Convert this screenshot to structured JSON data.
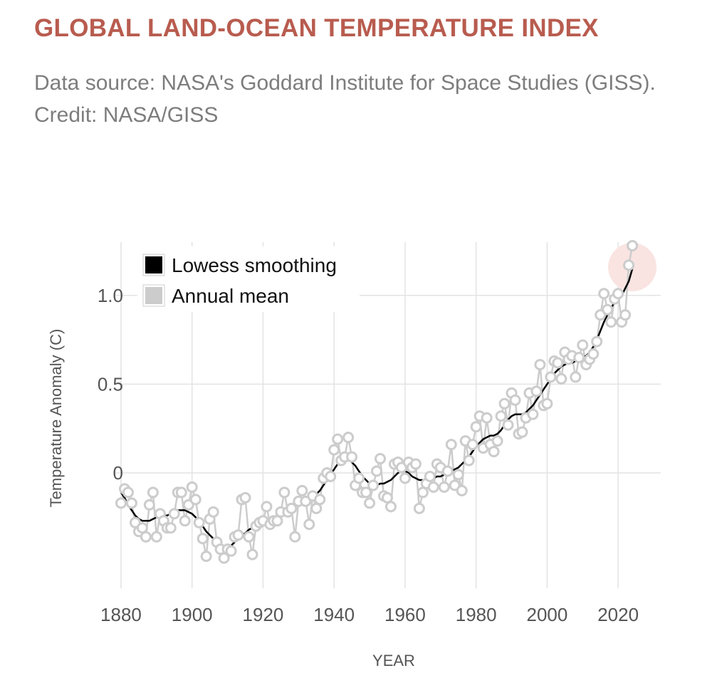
{
  "header": {
    "title": "GLOBAL LAND-OCEAN TEMPERATURE INDEX",
    "subtitle": "Data source: NASA's Goddard Institute for Space Studies (GISS). Credit: NASA/GISS"
  },
  "chart_data": {
    "type": "line",
    "title": "GLOBAL LAND-OCEAN TEMPERATURE INDEX",
    "xlabel": "YEAR",
    "ylabel": "Temperature Anomaly (C)",
    "xlim": [
      1878,
      2032
    ],
    "ylim": [
      -0.65,
      1.3
    ],
    "x_ticks": [
      1880,
      1900,
      1920,
      1940,
      1960,
      1980,
      2000,
      2020
    ],
    "x_tick_labels": [
      "1880",
      "1900",
      "1920",
      "1940",
      "1960",
      "1980",
      "2000",
      "2020"
    ],
    "y_ticks": [
      0,
      0.5,
      1.0
    ],
    "y_tick_labels": [
      "0",
      "0.5",
      "1.0"
    ],
    "grid": true,
    "legend": {
      "position": "top-left",
      "entries": [
        {
          "label": "Lowess smoothing",
          "color": "#000000"
        },
        {
          "label": "Annual mean",
          "color": "#cccccc"
        }
      ]
    },
    "highlight": {
      "year": 2024,
      "color": "#f9e4e1"
    },
    "series": [
      {
        "name": "Annual mean",
        "color": "#cccccc",
        "years": [
          1880,
          1881,
          1882,
          1883,
          1884,
          1885,
          1886,
          1887,
          1888,
          1889,
          1890,
          1891,
          1892,
          1893,
          1894,
          1895,
          1896,
          1897,
          1898,
          1899,
          1900,
          1901,
          1902,
          1903,
          1904,
          1905,
          1906,
          1907,
          1908,
          1909,
          1910,
          1911,
          1912,
          1913,
          1914,
          1915,
          1916,
          1917,
          1918,
          1919,
          1920,
          1921,
          1922,
          1923,
          1924,
          1925,
          1926,
          1927,
          1928,
          1929,
          1930,
          1931,
          1932,
          1933,
          1934,
          1935,
          1936,
          1937,
          1938,
          1939,
          1940,
          1941,
          1942,
          1943,
          1944,
          1945,
          1946,
          1947,
          1948,
          1949,
          1950,
          1951,
          1952,
          1953,
          1954,
          1955,
          1956,
          1957,
          1958,
          1959,
          1960,
          1961,
          1962,
          1963,
          1964,
          1965,
          1966,
          1967,
          1968,
          1969,
          1970,
          1971,
          1972,
          1973,
          1974,
          1975,
          1976,
          1977,
          1978,
          1979,
          1980,
          1981,
          1982,
          1983,
          1984,
          1985,
          1986,
          1987,
          1988,
          1989,
          1990,
          1991,
          1992,
          1993,
          1994,
          1995,
          1996,
          1997,
          1998,
          1999,
          2000,
          2001,
          2002,
          2003,
          2004,
          2005,
          2006,
          2007,
          2008,
          2009,
          2010,
          2011,
          2012,
          2013,
          2014,
          2015,
          2016,
          2017,
          2018,
          2019,
          2020,
          2021,
          2022,
          2023,
          2024
        ],
        "values": [
          -0.17,
          -0.09,
          -0.11,
          -0.17,
          -0.28,
          -0.33,
          -0.31,
          -0.36,
          -0.18,
          -0.11,
          -0.36,
          -0.23,
          -0.27,
          -0.31,
          -0.31,
          -0.23,
          -0.11,
          -0.11,
          -0.27,
          -0.18,
          -0.08,
          -0.15,
          -0.28,
          -0.37,
          -0.47,
          -0.26,
          -0.22,
          -0.39,
          -0.43,
          -0.48,
          -0.43,
          -0.44,
          -0.36,
          -0.35,
          -0.15,
          -0.14,
          -0.36,
          -0.46,
          -0.3,
          -0.28,
          -0.27,
          -0.19,
          -0.29,
          -0.27,
          -0.27,
          -0.22,
          -0.11,
          -0.22,
          -0.2,
          -0.36,
          -0.16,
          -0.1,
          -0.16,
          -0.29,
          -0.13,
          -0.2,
          -0.15,
          -0.03,
          0.0,
          -0.02,
          0.13,
          0.19,
          0.07,
          0.09,
          0.2,
          0.09,
          -0.07,
          -0.03,
          -0.11,
          -0.11,
          -0.17,
          -0.07,
          0.01,
          0.08,
          -0.13,
          -0.14,
          -0.19,
          0.05,
          0.06,
          0.03,
          -0.03,
          0.06,
          0.03,
          0.05,
          -0.2,
          -0.11,
          -0.06,
          -0.02,
          -0.08,
          0.05,
          0.03,
          -0.08,
          0.01,
          0.16,
          -0.07,
          -0.01,
          -0.1,
          0.18,
          0.07,
          0.16,
          0.26,
          0.32,
          0.14,
          0.31,
          0.16,
          0.12,
          0.18,
          0.32,
          0.39,
          0.27,
          0.45,
          0.41,
          0.22,
          0.23,
          0.31,
          0.45,
          0.33,
          0.46,
          0.61,
          0.38,
          0.39,
          0.54,
          0.63,
          0.62,
          0.53,
          0.68,
          0.64,
          0.66,
          0.54,
          0.65,
          0.72,
          0.61,
          0.64,
          0.67,
          0.74,
          0.89,
          1.01,
          0.92,
          0.85,
          0.98,
          1.01,
          0.85,
          0.89,
          1.17,
          1.28
        ]
      },
      {
        "name": "Lowess smoothing",
        "color": "#000000",
        "years": [
          1880,
          1881,
          1882,
          1883,
          1884,
          1885,
          1886,
          1887,
          1888,
          1889,
          1890,
          1891,
          1892,
          1893,
          1894,
          1895,
          1896,
          1897,
          1898,
          1899,
          1900,
          1901,
          1902,
          1903,
          1904,
          1905,
          1906,
          1907,
          1908,
          1909,
          1910,
          1911,
          1912,
          1913,
          1914,
          1915,
          1916,
          1917,
          1918,
          1919,
          1920,
          1921,
          1922,
          1923,
          1924,
          1925,
          1926,
          1927,
          1928,
          1929,
          1930,
          1931,
          1932,
          1933,
          1934,
          1935,
          1936,
          1937,
          1938,
          1939,
          1940,
          1941,
          1942,
          1943,
          1944,
          1945,
          1946,
          1947,
          1948,
          1949,
          1950,
          1951,
          1952,
          1953,
          1954,
          1955,
          1956,
          1957,
          1958,
          1959,
          1960,
          1961,
          1962,
          1963,
          1964,
          1965,
          1966,
          1967,
          1968,
          1969,
          1970,
          1971,
          1972,
          1973,
          1974,
          1975,
          1976,
          1977,
          1978,
          1979,
          1980,
          1981,
          1982,
          1983,
          1984,
          1985,
          1986,
          1987,
          1988,
          1989,
          1990,
          1991,
          1992,
          1993,
          1994,
          1995,
          1996,
          1997,
          1998,
          1999,
          2000,
          2001,
          2002,
          2003,
          2004,
          2005,
          2006,
          2007,
          2008,
          2009,
          2010,
          2011,
          2012,
          2013,
          2014,
          2015,
          2016,
          2017,
          2018,
          2019,
          2020,
          2021,
          2022,
          2023,
          2024
        ],
        "values": [
          -0.11,
          -0.14,
          -0.18,
          -0.21,
          -0.24,
          -0.26,
          -0.27,
          -0.27,
          -0.27,
          -0.26,
          -0.25,
          -0.25,
          -0.24,
          -0.24,
          -0.23,
          -0.22,
          -0.21,
          -0.21,
          -0.21,
          -0.22,
          -0.23,
          -0.25,
          -0.27,
          -0.3,
          -0.33,
          -0.35,
          -0.37,
          -0.39,
          -0.41,
          -0.42,
          -0.42,
          -0.41,
          -0.39,
          -0.37,
          -0.35,
          -0.34,
          -0.32,
          -0.31,
          -0.3,
          -0.29,
          -0.28,
          -0.27,
          -0.26,
          -0.25,
          -0.24,
          -0.23,
          -0.22,
          -0.21,
          -0.2,
          -0.19,
          -0.18,
          -0.17,
          -0.16,
          -0.15,
          -0.14,
          -0.12,
          -0.1,
          -0.07,
          -0.04,
          -0.01,
          0.02,
          0.05,
          0.07,
          0.08,
          0.08,
          0.06,
          0.04,
          0.01,
          -0.02,
          -0.04,
          -0.06,
          -0.07,
          -0.07,
          -0.06,
          -0.06,
          -0.05,
          -0.04,
          -0.02,
          0.0,
          0.01,
          0.01,
          0.0,
          -0.02,
          -0.03,
          -0.04,
          -0.04,
          -0.04,
          -0.03,
          -0.03,
          -0.02,
          -0.02,
          -0.01,
          0.0,
          0.01,
          0.02,
          0.03,
          0.05,
          0.07,
          0.09,
          0.12,
          0.15,
          0.17,
          0.19,
          0.2,
          0.21,
          0.21,
          0.22,
          0.24,
          0.27,
          0.3,
          0.32,
          0.33,
          0.33,
          0.33,
          0.34,
          0.36,
          0.38,
          0.41,
          0.44,
          0.47,
          0.5,
          0.53,
          0.56,
          0.58,
          0.6,
          0.61,
          0.62,
          0.62,
          0.63,
          0.64,
          0.65,
          0.66,
          0.68,
          0.71,
          0.75,
          0.8,
          0.85,
          0.89,
          0.93,
          0.96,
          0.98,
          1.0,
          1.04,
          1.08,
          1.15
        ]
      }
    ]
  }
}
